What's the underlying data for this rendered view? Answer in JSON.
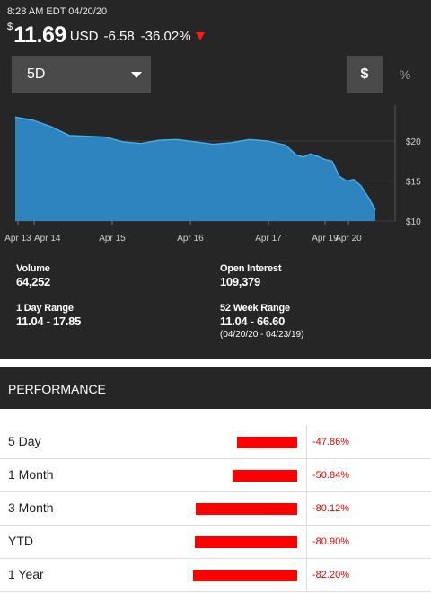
{
  "quote": {
    "timestamp": "8:28 AM EDT 04/20/20",
    "currency_symbol": "$",
    "price": "11.69",
    "currency": "USD",
    "change": "-6.58",
    "change_pct": "-36.02%",
    "direction": "down",
    "down_color": "#ff1a1a"
  },
  "controls": {
    "range_selected": "5D",
    "dollar_label": "$",
    "percent_label": "%"
  },
  "chart_data": {
    "type": "area",
    "x_ticks": [
      "Apr 13",
      "Apr 14",
      "Apr 15",
      "Apr 16",
      "Apr 17",
      "Apr 19",
      "Apr 20"
    ],
    "y_ticks": [
      "$20",
      "$15",
      "$10"
    ],
    "ylim": [
      10,
      24.5
    ],
    "x": [
      0,
      0.05,
      0.1,
      0.15,
      0.2,
      0.25,
      0.3,
      0.35,
      0.4,
      0.45,
      0.5,
      0.55,
      0.6,
      0.65,
      0.7,
      0.75,
      0.78,
      0.8,
      0.82,
      0.84,
      0.86,
      0.88,
      0.9,
      0.92,
      0.94,
      0.96,
      0.98,
      1
    ],
    "values": [
      23.0,
      22.6,
      21.8,
      20.7,
      20.6,
      20.5,
      19.9,
      19.7,
      20.1,
      20.2,
      19.9,
      19.6,
      19.8,
      20.2,
      20.0,
      19.5,
      18.3,
      18.0,
      18.4,
      18.1,
      17.7,
      17.5,
      15.6,
      15.0,
      15.2,
      14.4,
      13.0,
      11.4
    ],
    "fill_color": "#2e84bf",
    "line_color": "#4aaee8",
    "grid": true
  },
  "stats": {
    "volume_label": "Volume",
    "volume_value": "64,252",
    "open_interest_label": "Open Interest",
    "open_interest_value": "109,379",
    "day_range_label": "1 Day Range",
    "day_range_value": "11.04 - 17.85",
    "week52_label": "52 Week Range",
    "week52_value": "11.04 - 66.60",
    "week52_dates": "(04/20/20 - 04/23/19)"
  },
  "performance": {
    "title": "PERFORMANCE",
    "rows": [
      {
        "label": "5 Day",
        "value": "-47.86%",
        "pct": -47.86
      },
      {
        "label": "1 Month",
        "value": "-50.84%",
        "pct": -50.84
      },
      {
        "label": "3 Month",
        "value": "-80.12%",
        "pct": -80.12
      },
      {
        "label": "YTD",
        "value": "-80.90%",
        "pct": -80.9
      },
      {
        "label": "1 Year",
        "value": "-82.20%",
        "pct": -82.2
      }
    ],
    "bar_color": "#ff0000",
    "value_color": "#e30000"
  }
}
